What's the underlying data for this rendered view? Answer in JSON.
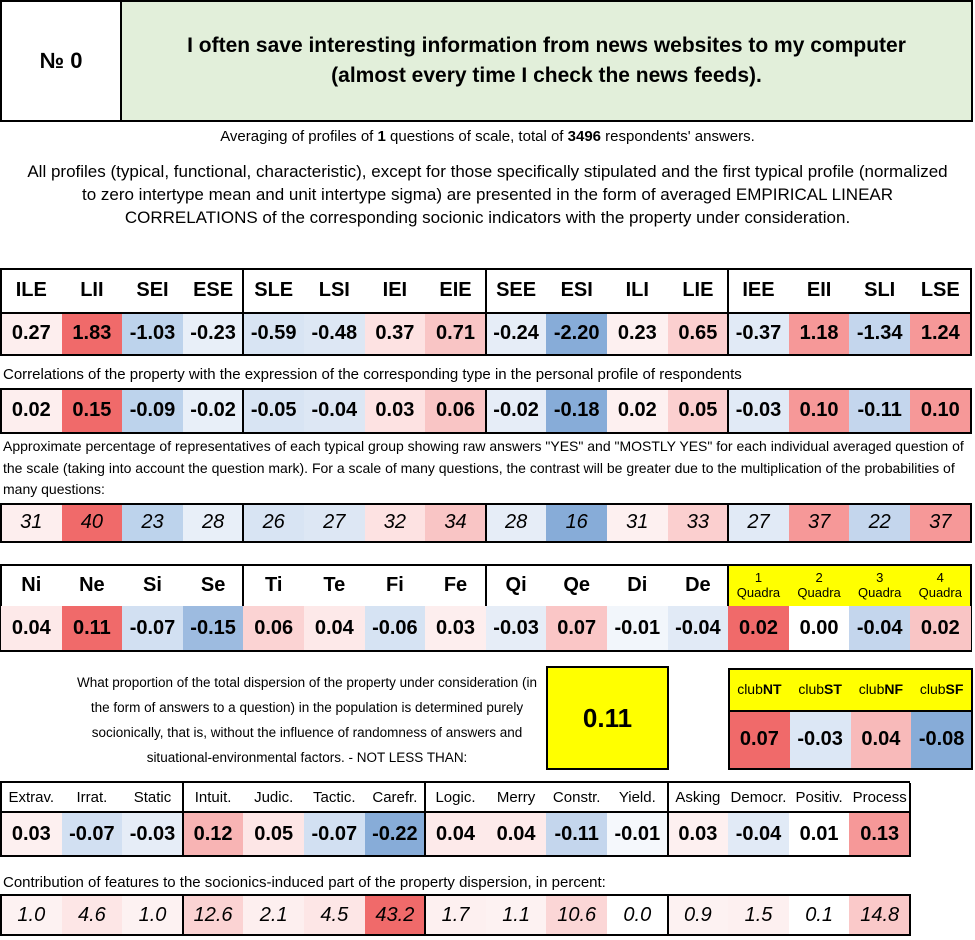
{
  "header": {
    "number_label": "№ 0",
    "question": "I often save interesting information from news websites to my computer (almost every time I check the news feeds)."
  },
  "summary": {
    "line_pre": "Averaging of profiles of ",
    "count_questions": "1",
    "line_mid": " questions of scale, total of ",
    "count_respondents": "3496",
    "line_post": " respondents' answers.",
    "description": "All profiles (typical, functional, characteristic), except for those specifically stipulated and the first typical profile (normalized to zero intertype mean and unit intertype sigma) are presented in the form of averaged EMPIRICAL LINEAR CORRELATIONS of the corresponding socionic indicators with the property under consideration."
  },
  "types": {
    "labels": [
      "ILE",
      "LII",
      "SEI",
      "ESE",
      "SLE",
      "LSI",
      "IEI",
      "EIE",
      "SEE",
      "ESI",
      "ILI",
      "LIE",
      "IEE",
      "EII",
      "SLI",
      "LSE"
    ],
    "normalized": [
      "0.27",
      "1.83",
      "-1.03",
      "-0.23",
      "-0.59",
      "-0.48",
      "0.37",
      "0.71",
      "-0.24",
      "-2.20",
      "0.23",
      "0.65",
      "-0.37",
      "1.18",
      "-1.34",
      "1.24"
    ],
    "correlation_caption": "Correlations of the property with the expression of the corresponding type in the personal profile of respondents",
    "correlations": [
      "0.02",
      "0.15",
      "-0.09",
      "-0.02",
      "-0.05",
      "-0.04",
      "0.03",
      "0.06",
      "-0.02",
      "-0.18",
      "0.02",
      "0.05",
      "-0.03",
      "0.10",
      "-0.11",
      "0.10"
    ],
    "percent_caption": "Approximate percentage of representatives of each typical group showing raw answers \"YES\" and \"MOSTLY YES\" for each individual averaged question of the scale (taking into account the question mark). For a scale of many questions, the contrast will be greater due to the multiplication of the probabilities of many questions:",
    "percents": [
      "31",
      "40",
      "23",
      "28",
      "26",
      "27",
      "32",
      "34",
      "28",
      "16",
      "31",
      "33",
      "27",
      "37",
      "22",
      "37"
    ]
  },
  "functions": {
    "labels": [
      "Ni",
      "Ne",
      "Si",
      "Se",
      "Ti",
      "Te",
      "Fi",
      "Fe",
      "Qi",
      "Qe",
      "Di",
      "De"
    ],
    "values": [
      "0.04",
      "0.11",
      "-0.07",
      "-0.15",
      "0.06",
      "0.04",
      "-0.06",
      "0.03",
      "-0.03",
      "0.07",
      "-0.01",
      "-0.04"
    ],
    "quadra_labels": [
      [
        "1",
        "Quadra"
      ],
      [
        "2",
        "Quadra"
      ],
      [
        "3",
        "Quadra"
      ],
      [
        "4",
        "Quadra"
      ]
    ],
    "quadra_values": [
      "0.02",
      "0.00",
      "-0.04",
      "0.02"
    ]
  },
  "dispersion": {
    "text": "What proportion of the total dispersion of the property under consideration (in the form of answers to a question) in the population is determined purely socionically, that is, without the influence of randomness of answers and situational-environmental factors. - NOT LESS THAN:",
    "value": "0.11"
  },
  "clubs": {
    "labels": [
      [
        "club",
        "NT"
      ],
      [
        "club",
        "ST"
      ],
      [
        "club",
        "NF"
      ],
      [
        "club",
        "SF"
      ]
    ],
    "values": [
      "0.07",
      "-0.03",
      "0.04",
      "-0.08"
    ]
  },
  "traits": {
    "labels": [
      "Extrav.",
      "Irrat.",
      "Static",
      "Intuit.",
      "Judic.",
      "Tactic.",
      "Carefr.",
      "Logic.",
      "Merry",
      "Constr.",
      "Yield.",
      "Asking",
      "Democr.",
      "Positiv.",
      "Process"
    ],
    "values": [
      "0.03",
      "-0.07",
      "-0.03",
      "0.12",
      "0.05",
      "-0.07",
      "-0.22",
      "0.04",
      "0.04",
      "-0.11",
      "-0.01",
      "0.03",
      "-0.04",
      "0.01",
      "0.13"
    ],
    "contribution_caption": "Contribution of features to the socionics-induced part of the property dispersion, in percent:",
    "contributions": [
      "1.0",
      "4.6",
      "1.0",
      "12.6",
      "2.1",
      "4.5",
      "43.2",
      "1.7",
      "1.1",
      "10.6",
      "0.0",
      "0.9",
      "1.5",
      "0.1",
      "14.8"
    ]
  },
  "colors": {
    "header_green": "#e2efda",
    "highlight_yellow": "#ffff00",
    "red_strong": "#f06a6a",
    "blue_strong": "#87acd8"
  },
  "cell_colors": {
    "types_normalized": [
      "#fdeeee",
      "#f06a6a",
      "#bdd3ec",
      "#e8eff8",
      "#d8e4f3",
      "#dde7f4",
      "#fde2e2",
      "#f9c5c5",
      "#e6edf7",
      "#87acd8",
      "#fdf0f0",
      "#fbcfcf",
      "#e1eaf6",
      "#f69898",
      "#c4d6ed",
      "#f69898"
    ],
    "types_correlations": [
      "#fdeeee",
      "#f06a6a",
      "#bdd3ec",
      "#e8eff8",
      "#d8e4f3",
      "#dde7f4",
      "#fde2e2",
      "#f9c5c5",
      "#e6edf7",
      "#87acd8",
      "#fdf0f0",
      "#fbcfcf",
      "#e1eaf6",
      "#f69898",
      "#c4d6ed",
      "#f69898"
    ],
    "types_percents": [
      "#fdeeee",
      "#f06a6a",
      "#bdd3ec",
      "#e8eff8",
      "#d8e4f3",
      "#dde7f4",
      "#fde2e2",
      "#f9c5c5",
      "#e6edf7",
      "#87acd8",
      "#fdf0f0",
      "#fbcfcf",
      "#e1eaf6",
      "#f69898",
      "#c4d6ed",
      "#f69898"
    ],
    "functions": [
      "#fde9e9",
      "#f06a6a",
      "#d2e0f2",
      "#9dbbe0",
      "#fbd3d3",
      "#fde9e9",
      "#d6e3f3",
      "#fdeeee",
      "#e6edf7",
      "#fac6c6",
      "#f2f6fb",
      "#e1eaf6"
    ],
    "quadras": [
      "#f06a6a",
      "#ffffff",
      "#c4d6ed",
      "#f9c5c5"
    ],
    "clubs": [
      "#f06a6a",
      "#dce7f5",
      "#f8baba",
      "#87acd8"
    ],
    "traits": [
      "#fdf0f0",
      "#d2e0f2",
      "#e6edf7",
      "#f8b4b4",
      "#fde6e6",
      "#d2e0f2",
      "#87acd8",
      "#fdeaea",
      "#fdeaea",
      "#c4d6ed",
      "#f5f8fc",
      "#fdf0f0",
      "#e1eaf6",
      "#ffffff",
      "#f69898"
    ],
    "contributions": [
      "#fdf2f2",
      "#fde6e6",
      "#fdf2f2",
      "#fbd3d3",
      "#fdefef",
      "#fde6e6",
      "#f06a6a",
      "#fdf0f0",
      "#fdf2f2",
      "#fbd6d6",
      "#ffffff",
      "#fdf2f2",
      "#fdf0f0",
      "#ffffff",
      "#fac9c9"
    ]
  }
}
